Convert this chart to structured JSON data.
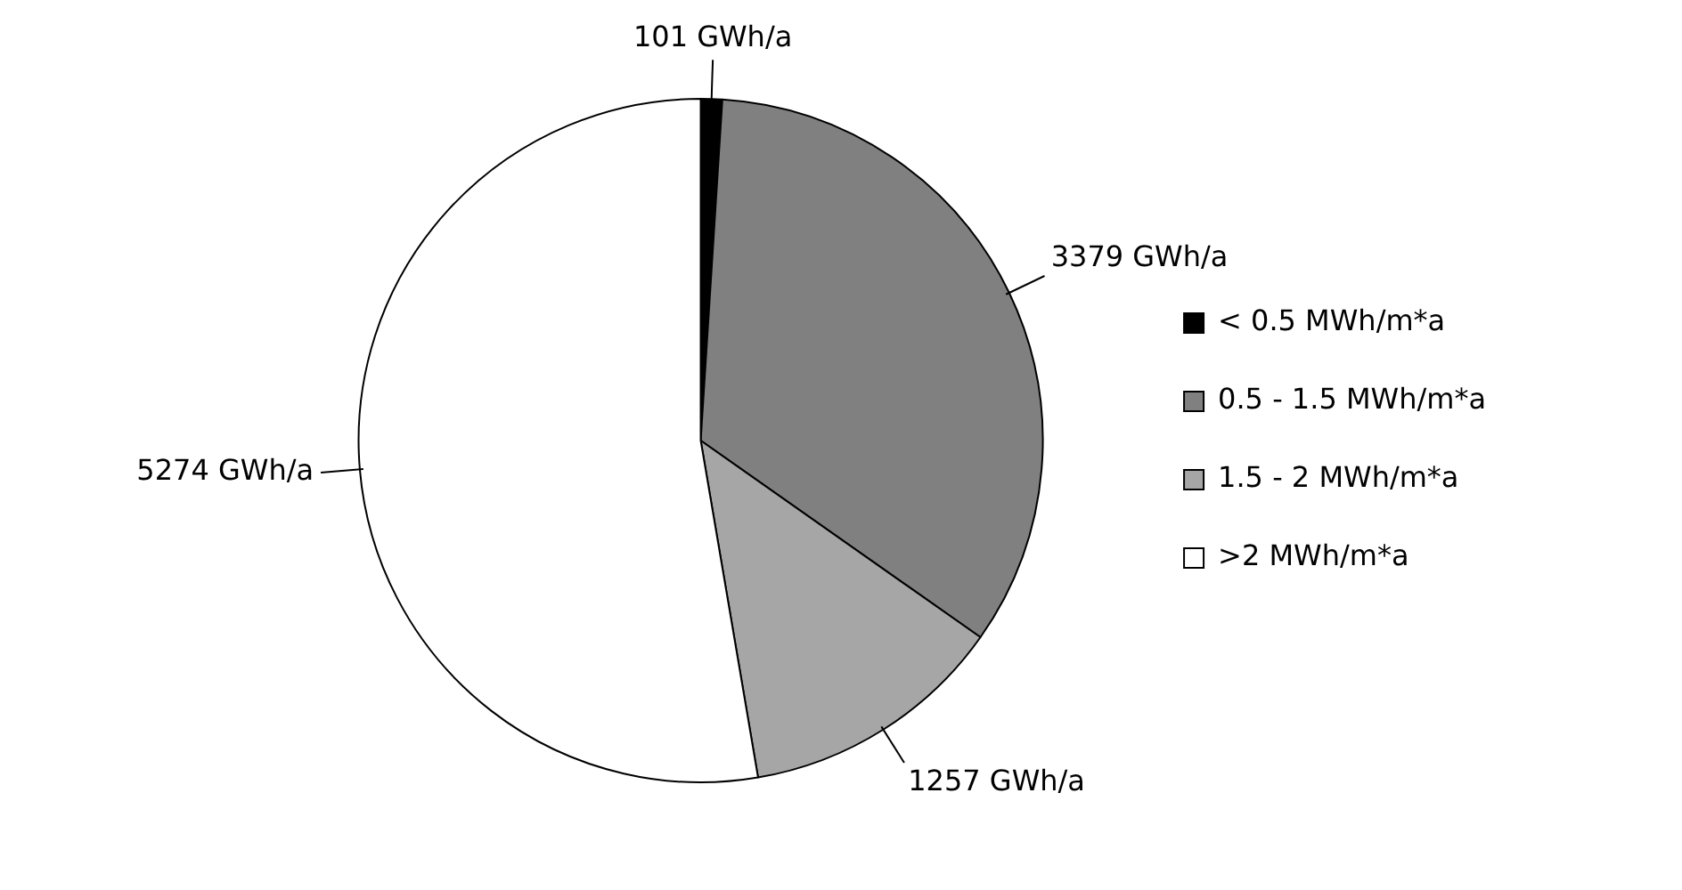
{
  "chart_data": {
    "type": "pie",
    "categories": [
      "< 0.5 MWh/m*a",
      "0.5 - 1.5 MWh/m*a",
      "1.5 - 2 MWh/m*a",
      ">2 MWh/m*a"
    ],
    "values": [
      101,
      3379,
      1257,
      5274
    ],
    "colors": [
      "#000000",
      "#808080",
      "#a6a6a6",
      "#ffffff"
    ],
    "value_labels": [
      "101 GWh/a",
      "3379 GWh/a",
      "1257 GWh/a",
      "5274 GWh/a"
    ],
    "legend": "right"
  }
}
